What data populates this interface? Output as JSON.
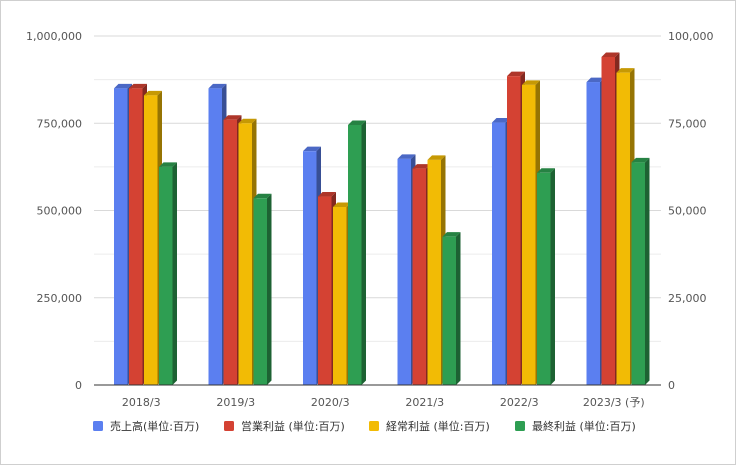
{
  "chart_data": {
    "type": "bar",
    "title": "",
    "xlabel": "",
    "ylabel": "",
    "grid": true,
    "legend_position": "bottom",
    "categories": [
      "2018/3",
      "2019/3",
      "2020/3",
      "2021/3",
      "2022/3",
      "2023/3 (予)"
    ],
    "y_left": {
      "ylim": [
        0,
        1000000
      ],
      "ticks": [
        "0",
        "250,000",
        "500,000",
        "750,000",
        "1,000,000"
      ]
    },
    "y_right": {
      "ylim": [
        0,
        100000
      ],
      "ticks": [
        "0",
        "25,000",
        "50,000",
        "75,000",
        "100,000"
      ]
    },
    "series": [
      {
        "name": "売上高(単位:百万)",
        "axis": "left",
        "color": "#5b7ff0",
        "values": [
          850000,
          850000,
          670000,
          648000,
          752000,
          868000
        ]
      },
      {
        "name": "営業利益 (単位:百万)",
        "axis": "right",
        "color": "#d44233",
        "values": [
          85000,
          76000,
          54000,
          62000,
          88500,
          94000
        ]
      },
      {
        "name": "経常利益 (単位:百万)",
        "axis": "right",
        "color": "#f2bb05",
        "values": [
          83000,
          75000,
          51000,
          64500,
          86000,
          89500
        ]
      },
      {
        "name": "最終利益 (単位:百万)",
        "axis": "right",
        "color": "#2e9e52",
        "values": [
          62500,
          53500,
          74500,
          42500,
          60800,
          63800
        ]
      }
    ]
  }
}
